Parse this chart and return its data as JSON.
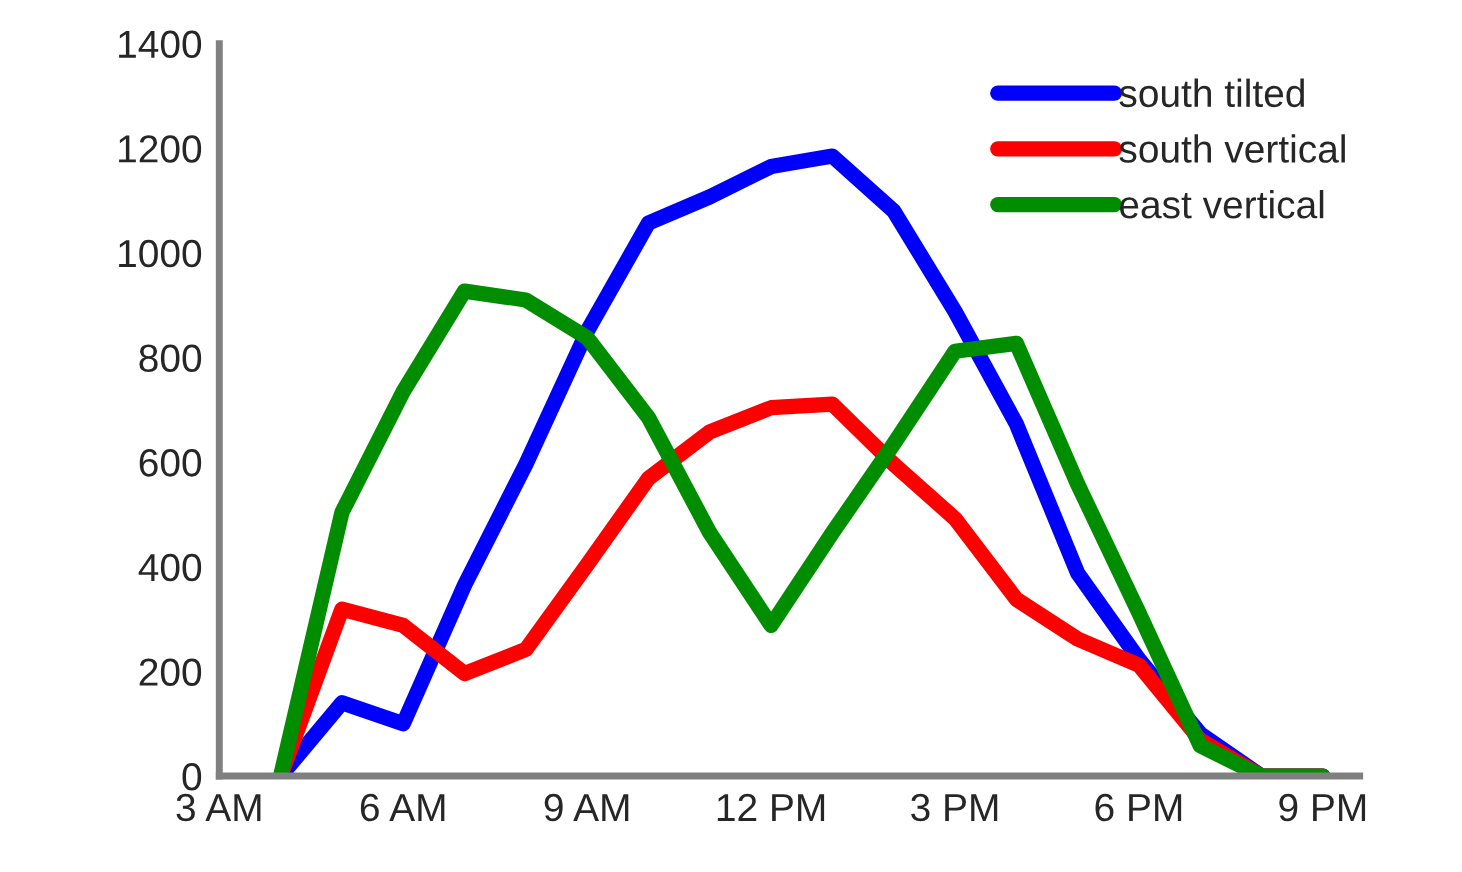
{
  "chart_data": {
    "type": "line",
    "categories": [
      "3 AM",
      null,
      null,
      "6 AM",
      null,
      null,
      "9 AM",
      null,
      null,
      "12 PM",
      null,
      null,
      "3 PM",
      null,
      null,
      "6 PM",
      null,
      null,
      "9 PM"
    ],
    "series": [
      {
        "name": "south tilted",
        "color": "#0000ff",
        "values": [
          null,
          0,
          140,
          100,
          365,
          596,
          850,
          1057,
          1107,
          1165,
          1185,
          1080,
          888,
          673,
          388,
          223,
          81,
          0,
          0
        ]
      },
      {
        "name": "south vertical",
        "color": "#ff0000",
        "values": [
          null,
          0,
          319,
          288,
          196,
          242,
          404,
          569,
          658,
          704,
          711,
          596,
          492,
          338,
          262,
          212,
          69,
          0,
          0
        ]
      },
      {
        "name": "east vertical",
        "color": "#008e00",
        "values": [
          null,
          0,
          504,
          735,
          927,
          910,
          838,
          685,
          465,
          288,
          465,
          635,
          812,
          827,
          558,
          312,
          58,
          0,
          0
        ]
      }
    ],
    "ylim": [
      0,
      1400
    ],
    "yticks": [
      0,
      200,
      400,
      600,
      800,
      1000,
      1200,
      1400
    ],
    "grid": false,
    "legend": "top right",
    "marker": "none",
    "line_style": "solid"
  }
}
